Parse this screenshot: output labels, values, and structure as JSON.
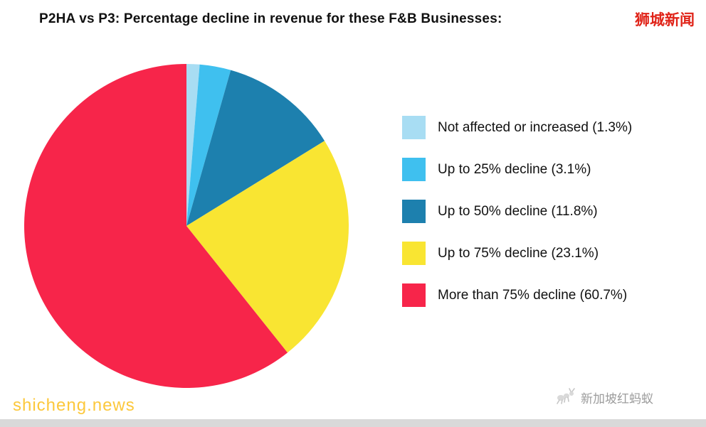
{
  "title": "P2HA vs P3: Percentage decline in revenue for these F&B Businesses:",
  "watermarks": {
    "top_right": "狮城新闻",
    "bottom_left": "shicheng.news",
    "bottom_right": "新加坡红蚂蚁"
  },
  "colors": {
    "title_text": "#111111",
    "watermark_red": "#e02419",
    "watermark_yellow": "#fcc83c",
    "watermark_gray": "#9c9c9c",
    "bottom_strip": "#d9d9d9"
  },
  "chart_data": {
    "type": "pie",
    "title": "P2HA vs P3: Percentage decline in revenue for these F&B Businesses:",
    "labels": [
      "Not affected or increased",
      "Up to 25% decline",
      "Up to 50% decline",
      "Up to 75% decline",
      "More than 75% decline"
    ],
    "values": [
      1.3,
      3.1,
      11.8,
      23.1,
      60.7
    ],
    "legend_labels": [
      "Not affected or increased (1.3%)",
      "Up to 25% decline (3.1%)",
      "Up to 50% decline (11.8%)",
      "Up to 75% decline (23.1%)",
      "More than 75% decline (60.7%)"
    ],
    "colors": [
      "#a8ddf3",
      "#3fc0ef",
      "#1d80ae",
      "#f9e532",
      "#f7254a"
    ],
    "start_angle_deg": 0,
    "direction": "clockwise",
    "legend_position": "right",
    "data_labels_shown": false
  }
}
